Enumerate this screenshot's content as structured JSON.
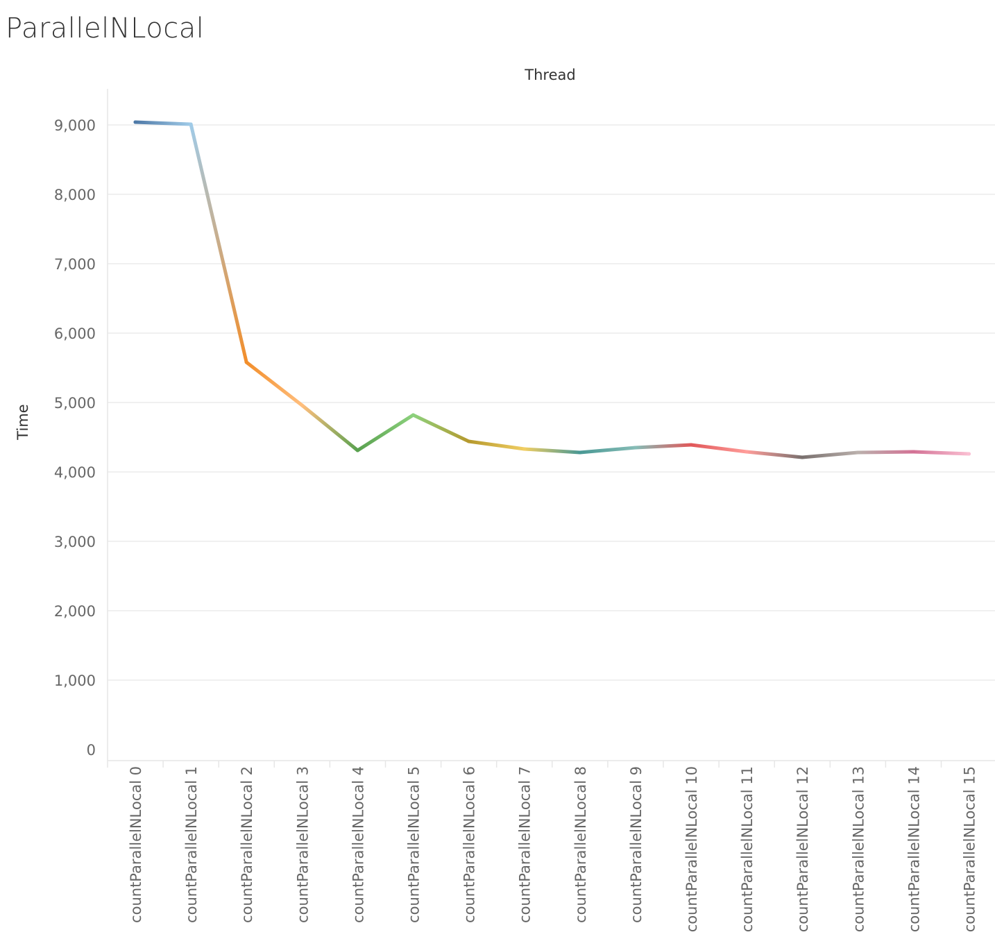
{
  "page": {
    "title": "ParallelNLocal"
  },
  "chart_data": {
    "type": "line",
    "title": "ParallelNLocal",
    "header": "Thread",
    "xlabel": "",
    "ylabel": "Time",
    "ylim": [
      0,
      9500
    ],
    "yticks": [
      0,
      1000,
      2000,
      3000,
      4000,
      5000,
      6000,
      7000,
      8000,
      9000
    ],
    "ytick_labels": [
      "0",
      "1,000",
      "2,000",
      "3,000",
      "4,000",
      "5,000",
      "6,000",
      "7,000",
      "8,000",
      "9,000"
    ],
    "grid": true,
    "categories": [
      "countParallelNLocal 0",
      "countParallelNLocal 1",
      "countParallelNLocal 2",
      "countParallelNLocal 3",
      "countParallelNLocal 4",
      "countParallelNLocal 5",
      "countParallelNLocal 6",
      "countParallelNLocal 7",
      "countParallelNLocal 8",
      "countParallelNLocal 9",
      "countParallelNLocal 10",
      "countParallelNLocal 11",
      "countParallelNLocal 12",
      "countParallelNLocal 13",
      "countParallelNLocal 14",
      "countParallelNLocal 15"
    ],
    "values": [
      9040,
      9010,
      5580,
      4960,
      4310,
      4820,
      4440,
      4330,
      4280,
      4350,
      4390,
      4290,
      4210,
      4280,
      4290,
      4260
    ],
    "colors": [
      "#4e79a7",
      "#a0cbe8",
      "#f28e2b",
      "#ffbe7d",
      "#59a14f",
      "#8cd17d",
      "#b6992d",
      "#f1ce63",
      "#499894",
      "#86bcb6",
      "#e15759",
      "#ff9d9a",
      "#79706e",
      "#bab0ac",
      "#d37295",
      "#fabfd2"
    ]
  }
}
